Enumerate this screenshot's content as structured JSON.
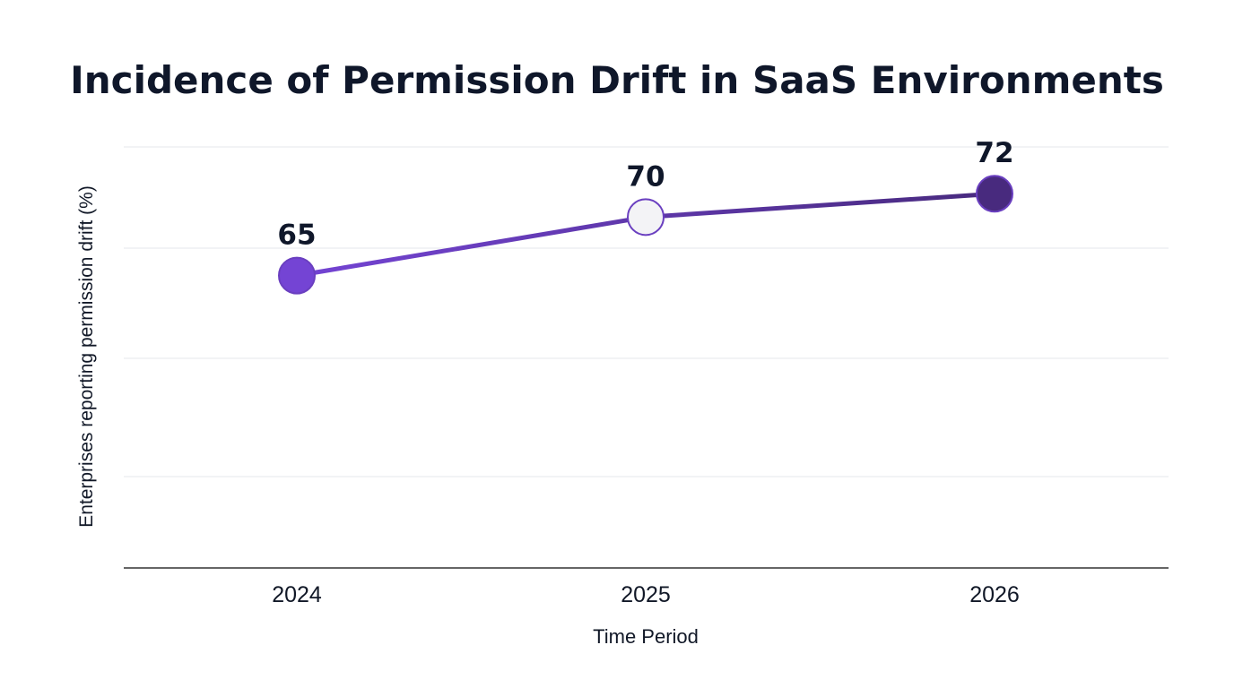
{
  "chart_data": {
    "type": "line",
    "title": "Incidence of Permission Drift in SaaS Environments",
    "xlabel": "Time Period",
    "ylabel": "Enterprises reporting permission drift (%)",
    "categories": [
      "2024",
      "2025",
      "2026"
    ],
    "series": [
      {
        "values": [
          65,
          70,
          72
        ],
        "data_labels": [
          "65",
          "70",
          "72"
        ],
        "point_colors": [
          "#7444d4",
          "#f3f3f6",
          "#482a7e"
        ],
        "point_stroke": "#6a3fc0",
        "line_colors": [
          "#7444d4",
          "#482a7e"
        ]
      }
    ],
    "ylim": [
      40,
      76
    ],
    "grid": true,
    "legend": "none",
    "colors": {
      "title": "#0f172a",
      "grid": "#e5e7eb",
      "axis": "#333333",
      "text": "#111827"
    }
  }
}
